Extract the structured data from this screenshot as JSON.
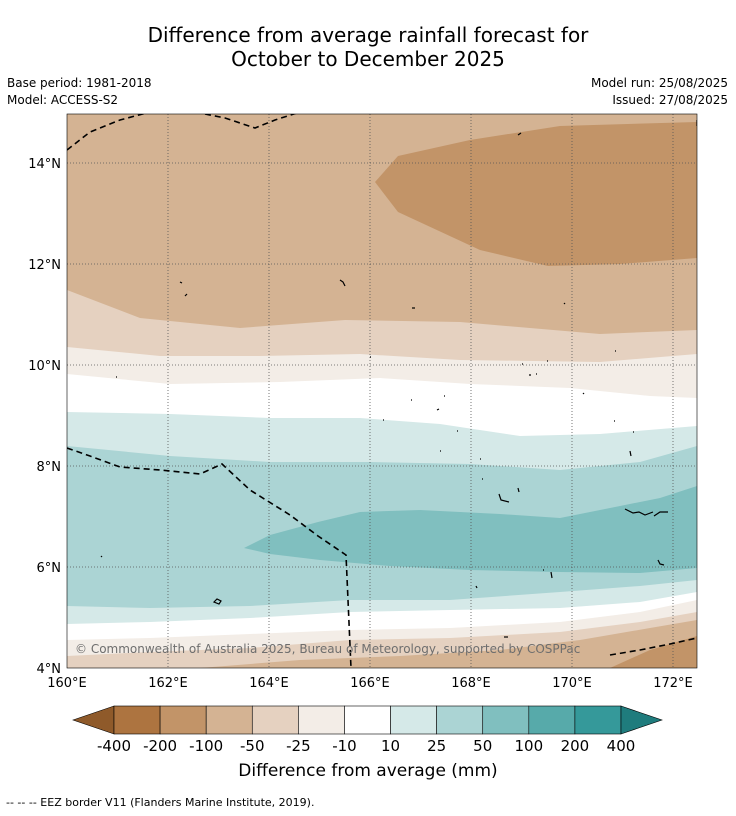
{
  "title_line1": "Difference from average rainfall forecast for",
  "title_line2": "October to December 2025",
  "base_period": "Base period: 1981-2018",
  "model": "Model: ACCESS-S2",
  "model_run": "Model run: 25/08/2025",
  "issued": "Issued: 27/08/2025",
  "copyright": "© Commonwealth of Australia 2025, Bureau of Meteorology, supported by COSPPac",
  "x_ticks": [
    "160°E",
    "162°E",
    "164°E",
    "166°E",
    "168°E",
    "170°E",
    "172°E"
  ],
  "y_ticks": [
    "4°N",
    "6°N",
    "8°N",
    "10°N",
    "12°N",
    "14°N"
  ],
  "colorbar": {
    "title": "Difference from average (mm)",
    "labels": [
      "-400",
      "-200",
      "-100",
      "-50",
      "-25",
      "-10",
      "10",
      "25",
      "50",
      "100",
      "200",
      "400"
    ],
    "colors": [
      "#8f5a2a",
      "#ad7440",
      "#c29468",
      "#d4b393",
      "#e5d1c0",
      "#f3ede7",
      "#ffffff",
      "#d5e9e8",
      "#abd4d4",
      "#80bfbf",
      "#57aaaa",
      "#35999a",
      "#1f7c7d"
    ]
  },
  "legend_note": "--  --  -- EEZ border V11 (Flanders Marine Institute, 2019).",
  "map_extent": {
    "lon_min": 160,
    "lon_max": 172.5,
    "lat_min": 4,
    "lat_max": 15
  }
}
